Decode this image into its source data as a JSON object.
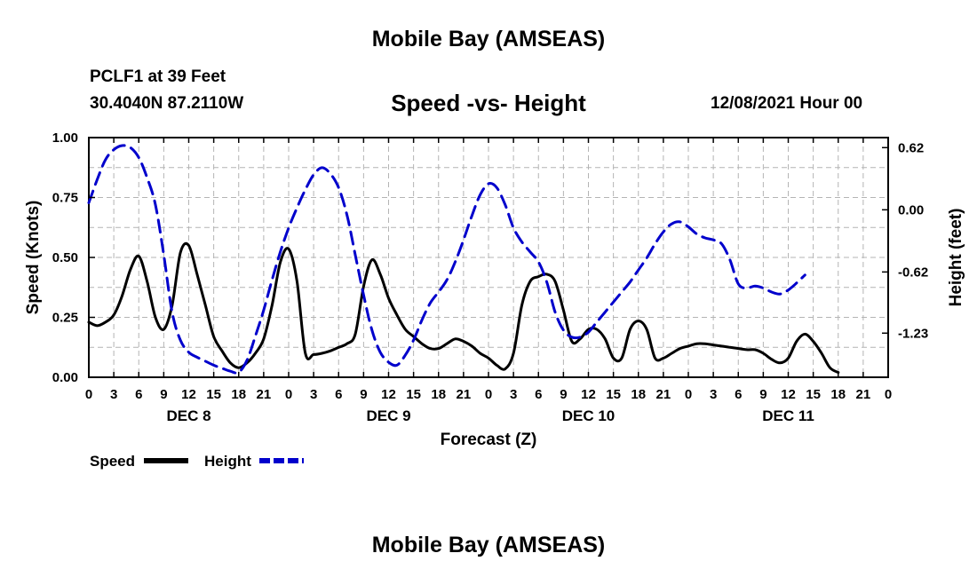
{
  "header": {
    "title": "Mobile Bay (AMSEAS)",
    "station": "PCLF1 at 39 Feet",
    "coordinates": "30.4040N  87.2110W",
    "subtitle": "Speed -vs- Height",
    "datetime": "12/08/2021 Hour 00"
  },
  "footer": {
    "title": "Mobile Bay (AMSEAS)"
  },
  "chart_data": {
    "type": "line",
    "title": "Speed -vs- Height",
    "xlabel": "Forecast (Z)",
    "ylabel": "Speed (Knots)",
    "y2label": "Height (feet)",
    "x_unit": "forecast hour",
    "xlim": [
      0,
      96
    ],
    "x_tick_step": 3,
    "x_tick_labels": [
      "0",
      "3",
      "6",
      "9",
      "12",
      "15",
      "18",
      "21",
      "0",
      "3",
      "6",
      "9",
      "12",
      "15",
      "18",
      "21",
      "0",
      "3",
      "6",
      "9",
      "12",
      "15",
      "18",
      "21",
      "0",
      "3",
      "6",
      "9",
      "12",
      "15",
      "18",
      "21",
      "0"
    ],
    "day_labels": [
      {
        "label": "DEC 8",
        "hour": 12
      },
      {
        "label": "DEC 9",
        "hour": 36
      },
      {
        "label": "DEC 10",
        "hour": 60
      },
      {
        "label": "DEC 11",
        "hour": 84
      }
    ],
    "ylim": [
      0,
      1
    ],
    "y_ticks": [
      "0.00",
      "0.25",
      "0.50",
      "0.75",
      "1.00"
    ],
    "y2lim": [
      -1.67,
      0.72
    ],
    "y2_ticks": [
      "-1.23",
      "-0.62",
      "0.00",
      "0.62"
    ],
    "grid": true,
    "legend_placement": "bottom-left",
    "series": [
      {
        "name": "Speed",
        "axis": "left",
        "color": "#000000",
        "dash": "solid",
        "points": [
          [
            0,
            0.23
          ],
          [
            1,
            0.215
          ],
          [
            2,
            0.23
          ],
          [
            3,
            0.26
          ],
          [
            4,
            0.34
          ],
          [
            5,
            0.45
          ],
          [
            6,
            0.505
          ],
          [
            7,
            0.4
          ],
          [
            8,
            0.25
          ],
          [
            9,
            0.2
          ],
          [
            10,
            0.3
          ],
          [
            11,
            0.52
          ],
          [
            12,
            0.55
          ],
          [
            13,
            0.43
          ],
          [
            14,
            0.3
          ],
          [
            15,
            0.17
          ],
          [
            16,
            0.11
          ],
          [
            17,
            0.06
          ],
          [
            18,
            0.04
          ],
          [
            19,
            0.06
          ],
          [
            20,
            0.1
          ],
          [
            21,
            0.16
          ],
          [
            22,
            0.3
          ],
          [
            23,
            0.48
          ],
          [
            24,
            0.535
          ],
          [
            25,
            0.4
          ],
          [
            26,
            0.1
          ],
          [
            27,
            0.095
          ],
          [
            28,
            0.1
          ],
          [
            29,
            0.11
          ],
          [
            30,
            0.125
          ],
          [
            31,
            0.14
          ],
          [
            32,
            0.18
          ],
          [
            33,
            0.38
          ],
          [
            34,
            0.49
          ],
          [
            35,
            0.43
          ],
          [
            36,
            0.33
          ],
          [
            37,
            0.26
          ],
          [
            38,
            0.2
          ],
          [
            39,
            0.17
          ],
          [
            40,
            0.14
          ],
          [
            41,
            0.12
          ],
          [
            42,
            0.12
          ],
          [
            43,
            0.14
          ],
          [
            44,
            0.16
          ],
          [
            45,
            0.15
          ],
          [
            46,
            0.13
          ],
          [
            47,
            0.1
          ],
          [
            48,
            0.08
          ],
          [
            49,
            0.05
          ],
          [
            50,
            0.035
          ],
          [
            51,
            0.1
          ],
          [
            52,
            0.3
          ],
          [
            53,
            0.4
          ],
          [
            54,
            0.42
          ],
          [
            55,
            0.43
          ],
          [
            56,
            0.4
          ],
          [
            57,
            0.28
          ],
          [
            58,
            0.15
          ],
          [
            59,
            0.16
          ],
          [
            60,
            0.2
          ],
          [
            61,
            0.2
          ],
          [
            62,
            0.16
          ],
          [
            63,
            0.08
          ],
          [
            64,
            0.08
          ],
          [
            65,
            0.2
          ],
          [
            66,
            0.235
          ],
          [
            67,
            0.2
          ],
          [
            68,
            0.08
          ],
          [
            69,
            0.08
          ],
          [
            70,
            0.1
          ],
          [
            71,
            0.12
          ],
          [
            72,
            0.13
          ],
          [
            73,
            0.14
          ],
          [
            74,
            0.14
          ],
          [
            75,
            0.135
          ],
          [
            76,
            0.13
          ],
          [
            77,
            0.125
          ],
          [
            78,
            0.12
          ],
          [
            79,
            0.115
          ],
          [
            80,
            0.115
          ],
          [
            81,
            0.1
          ],
          [
            82,
            0.075
          ],
          [
            83,
            0.06
          ],
          [
            84,
            0.08
          ],
          [
            85,
            0.15
          ],
          [
            86,
            0.18
          ],
          [
            87,
            0.15
          ],
          [
            88,
            0.1
          ],
          [
            89,
            0.04
          ],
          [
            90,
            0.02
          ]
        ]
      },
      {
        "name": "Height",
        "axis": "right",
        "color": "#0000cc",
        "dash": "dashed",
        "points": [
          [
            0,
            0.07
          ],
          [
            1,
            0.3
          ],
          [
            2,
            0.5
          ],
          [
            3,
            0.6
          ],
          [
            4,
            0.64
          ],
          [
            5,
            0.62
          ],
          [
            6,
            0.52
          ],
          [
            7,
            0.32
          ],
          [
            8,
            0.05
          ],
          [
            9,
            -0.45
          ],
          [
            10,
            -1.02
          ],
          [
            11,
            -1.3
          ],
          [
            12,
            -1.42
          ],
          [
            13,
            -1.47
          ],
          [
            14,
            -1.51
          ],
          [
            15,
            -1.55
          ],
          [
            16,
            -1.58
          ],
          [
            17,
            -1.61
          ],
          [
            18,
            -1.62
          ],
          [
            19,
            -1.5
          ],
          [
            20,
            -1.26
          ],
          [
            21,
            -1.0
          ],
          [
            22,
            -0.7
          ],
          [
            23,
            -0.42
          ],
          [
            24,
            -0.18
          ],
          [
            25,
            0.02
          ],
          [
            26,
            0.2
          ],
          [
            27,
            0.35
          ],
          [
            28,
            0.42
          ],
          [
            29,
            0.36
          ],
          [
            30,
            0.22
          ],
          [
            31,
            -0.05
          ],
          [
            32,
            -0.45
          ],
          [
            33,
            -0.85
          ],
          [
            34,
            -1.2
          ],
          [
            35,
            -1.42
          ],
          [
            36,
            -1.52
          ],
          [
            37,
            -1.55
          ],
          [
            38,
            -1.45
          ],
          [
            39,
            -1.3
          ],
          [
            40,
            -1.1
          ],
          [
            41,
            -0.93
          ],
          [
            42,
            -0.82
          ],
          [
            43,
            -0.7
          ],
          [
            44,
            -0.52
          ],
          [
            45,
            -0.3
          ],
          [
            46,
            -0.06
          ],
          [
            47,
            0.15
          ],
          [
            48,
            0.26
          ],
          [
            49,
            0.22
          ],
          [
            50,
            0.05
          ],
          [
            51,
            -0.18
          ],
          [
            52,
            -0.32
          ],
          [
            53,
            -0.42
          ],
          [
            54,
            -0.52
          ],
          [
            55,
            -0.72
          ],
          [
            56,
            -1.02
          ],
          [
            57,
            -1.2
          ],
          [
            58,
            -1.27
          ],
          [
            59,
            -1.27
          ],
          [
            60,
            -1.22
          ],
          [
            61,
            -1.12
          ],
          [
            62,
            -1.02
          ],
          [
            63,
            -0.92
          ],
          [
            64,
            -0.82
          ],
          [
            65,
            -0.72
          ],
          [
            66,
            -0.6
          ],
          [
            67,
            -0.48
          ],
          [
            68,
            -0.34
          ],
          [
            69,
            -0.22
          ],
          [
            70,
            -0.14
          ],
          [
            71,
            -0.12
          ],
          [
            72,
            -0.17
          ],
          [
            73,
            -0.24
          ],
          [
            74,
            -0.28
          ],
          [
            75,
            -0.3
          ],
          [
            76,
            -0.34
          ],
          [
            77,
            -0.5
          ],
          [
            78,
            -0.74
          ],
          [
            79,
            -0.78
          ],
          [
            80,
            -0.76
          ],
          [
            81,
            -0.78
          ],
          [
            82,
            -0.82
          ],
          [
            83,
            -0.84
          ],
          [
            84,
            -0.8
          ],
          [
            85,
            -0.73
          ],
          [
            86,
            -0.65
          ]
        ]
      }
    ]
  }
}
